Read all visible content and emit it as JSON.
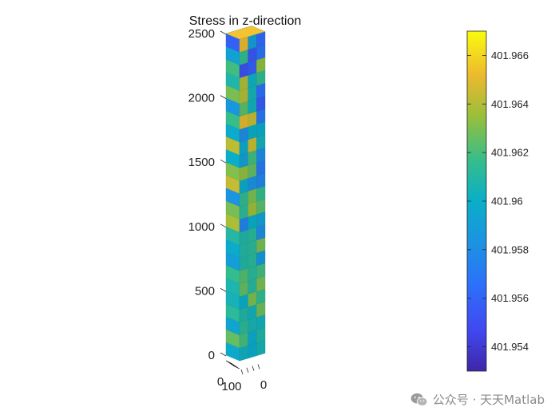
{
  "chart_data": {
    "type": "3d-bar-column",
    "title": "Stress in z-direction",
    "zlim": [
      0,
      2500
    ],
    "z_ticks": [
      "0",
      "500",
      "1000",
      "1500",
      "2000",
      "2500"
    ],
    "x_ticks": [
      "0",
      "100"
    ],
    "y_ticks": [
      "0"
    ],
    "colormap": "parula",
    "color_limits": [
      401.953,
      401.967
    ],
    "colorbar_ticks": [
      "401.954",
      "401.956",
      "401.958",
      "401.96",
      "401.962",
      "401.964",
      "401.966"
    ],
    "colorbar_tick_values": [
      401.954,
      401.956,
      401.958,
      401.96,
      401.962,
      401.964,
      401.966
    ],
    "grid": false,
    "colorbar_location": "right"
  },
  "watermark": {
    "text": "公众号 · 天天Matlab",
    "icon": "wechat-icon"
  },
  "colors": {
    "background": "#ffffff",
    "axis": "#262626",
    "watermark": "#8a8a8a"
  }
}
